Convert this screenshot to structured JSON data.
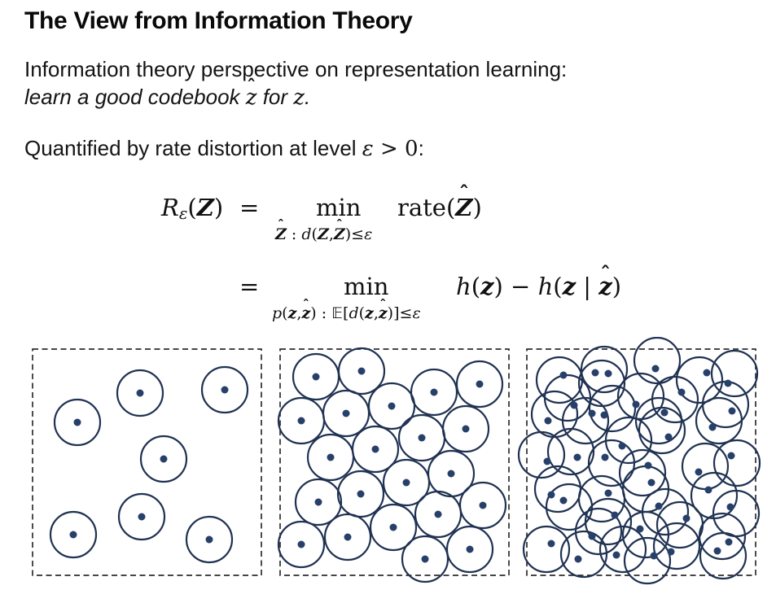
{
  "slide": {
    "title": "The View from Information Theory",
    "intro": {
      "line1": "Information theory perspective on representation learning:",
      "line2_prefix": "learn a good codebook ",
      "zhat": "z",
      "line2_mid": " for ",
      "z": "z",
      "period": "."
    },
    "quantified": {
      "prefix": "Quantified by rate distortion at level ",
      "epsilon": "ε",
      "gt_zero": " > 0",
      "colon": ":"
    },
    "formula": {
      "R": "R",
      "eps": "ε",
      "Z": "Z",
      "z": "z",
      "h": "h",
      "d": "d",
      "p": "p",
      "min": "min",
      "rate": "rate",
      "E": "𝔼",
      "eq": "=",
      "open": "(",
      "close": ")",
      "lbrack": "[",
      "rbrack": "]",
      "comma": ",",
      "colon": " : ",
      "leq": "≤",
      "minus": " − ",
      "bar": " | ",
      "hat": "ˆ"
    }
  },
  "panels": {
    "style": {
      "circle_color": "#203252",
      "dot_color": "#27406a",
      "border_color": "#2d2d2d",
      "radius": 28,
      "dot_radius": 4.5,
      "stroke_width": 2.2,
      "border_width": 1.7,
      "dash_pattern": "7 4.5",
      "frame_w": 281,
      "frame_h": 278
    },
    "frames": [
      {
        "name": "epsilon-large",
        "circles": [
          [
            132,
            54
          ],
          [
            236,
            50
          ],
          [
            55,
            90
          ],
          [
            161,
            135
          ],
          [
            134,
            206
          ],
          [
            50,
            228
          ],
          [
            217,
            234
          ]
        ]
      },
      {
        "name": "epsilon-medium",
        "circles": [
          [
            44,
            34
          ],
          [
            100,
            27
          ],
          [
            189,
            53
          ],
          [
            245,
            43
          ],
          [
            26,
            88
          ],
          [
            81,
            79
          ],
          [
            137,
            70
          ],
          [
            174,
            109
          ],
          [
            228,
            98
          ],
          [
            62,
            133
          ],
          [
            117,
            123
          ],
          [
            155,
            164
          ],
          [
            210,
            153
          ],
          [
            47,
            188
          ],
          [
            99,
            178
          ],
          [
            249,
            192
          ],
          [
            26,
            240
          ],
          [
            83,
            231
          ],
          [
            139,
            219
          ],
          [
            194,
            203
          ],
          [
            178,
            258
          ],
          [
            233,
            246
          ]
        ]
      },
      {
        "name": "epsilon-small",
        "circles": [
          [
            40,
            38
          ],
          [
            95,
            25
          ],
          [
            92,
            42
          ],
          [
            160,
            14
          ],
          [
            212,
            38
          ],
          [
            255,
            30
          ],
          [
            182,
            62
          ],
          [
            50,
            60
          ],
          [
            72,
            88
          ],
          [
            105,
            73
          ],
          [
            140,
            58
          ],
          [
            162,
            88
          ],
          [
            34,
            80
          ],
          [
            236,
            88
          ],
          [
            244,
            68
          ],
          [
            166,
            100
          ],
          [
            125,
            112
          ],
          [
            54,
            126
          ],
          [
            104,
            140
          ],
          [
            18,
            130
          ],
          [
            142,
            152
          ],
          [
            219,
            144
          ],
          [
            258,
            140
          ],
          [
            146,
            172
          ],
          [
            38,
            172
          ],
          [
            52,
            194
          ],
          [
            92,
            184
          ],
          [
            170,
            200
          ],
          [
            230,
            180
          ],
          [
            257,
            202
          ],
          [
            100,
            212
          ],
          [
            188,
            216
          ],
          [
            88,
            224
          ],
          [
            146,
            228
          ],
          [
            24,
            246
          ],
          [
            70,
            252
          ],
          [
            118,
            246
          ],
          [
            148,
            260
          ],
          [
            184,
            242
          ],
          [
            241,
            254
          ],
          [
            240,
            230
          ]
        ],
        "dots": [
          [
            45,
            32
          ],
          [
            84,
            29
          ],
          [
            100,
            30
          ],
          [
            158,
            24
          ],
          [
            221,
            29
          ],
          [
            247,
            42
          ],
          [
            190,
            53
          ],
          [
            58,
            69
          ],
          [
            80,
            79
          ],
          [
            95,
            81
          ],
          [
            134,
            68
          ],
          [
            169,
            78
          ],
          [
            26,
            88
          ],
          [
            228,
            96
          ],
          [
            252,
            76
          ],
          [
            174,
            108
          ],
          [
            117,
            119
          ],
          [
            62,
            133
          ],
          [
            96,
            133
          ],
          [
            25,
            138
          ],
          [
            149,
            143
          ],
          [
            211,
            151
          ],
          [
            251,
            131
          ],
          [
            153,
            164
          ],
          [
            30,
            179
          ],
          [
            45,
            186
          ],
          [
            100,
            177
          ],
          [
            162,
            193
          ],
          [
            223,
            173
          ],
          [
            250,
            194
          ],
          [
            108,
            204
          ],
          [
            196,
            208
          ],
          [
            80,
            230
          ],
          [
            139,
            221
          ],
          [
            30,
            239
          ],
          [
            63,
            258
          ],
          [
            110,
            253
          ],
          [
            156,
            254
          ],
          [
            177,
            249
          ],
          [
            234,
            248
          ],
          [
            248,
            237
          ]
        ]
      }
    ]
  }
}
